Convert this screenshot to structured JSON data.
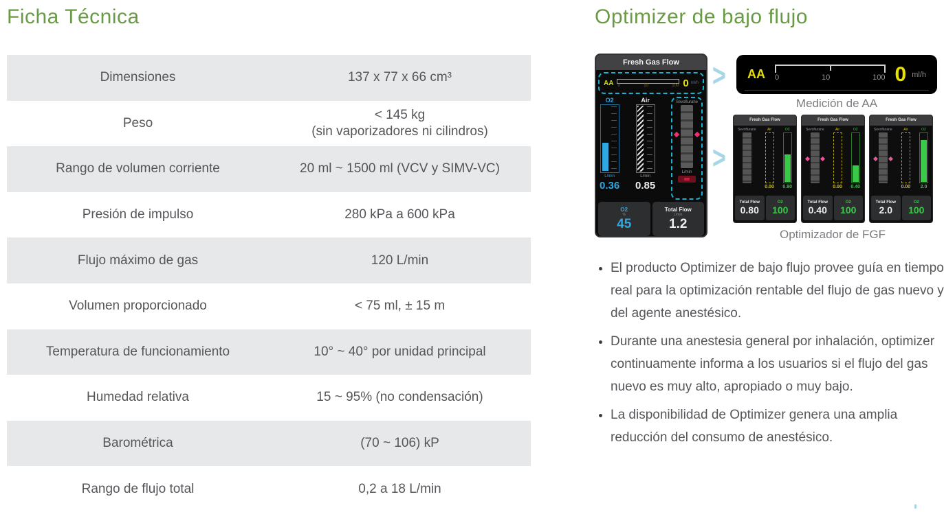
{
  "colors": {
    "accent_green": "#6a9b44",
    "body_text": "#55565a",
    "table_row_shade": "#e7e8ea",
    "caption_grey": "#7b7c7f",
    "highlight_cyan_dash": "#17b3d1",
    "chevron_blue": "#a6d7e8",
    "screen_yellow": "#e8e100",
    "screen_blue": "#2fa8e1",
    "screen_green": "#39c847",
    "screen_red": "#e8336d"
  },
  "left": {
    "title": "Ficha Técnica",
    "table": {
      "rows": [
        {
          "label": "Dimensiones",
          "value": "137 x 77 x 66 cm³"
        },
        {
          "label": "Peso",
          "value": "< 145 kg\n(sin vaporizadores ni cilindros)"
        },
        {
          "label": "Rango de volumen corriente",
          "value": "20 ml ~ 1500 ml (VCV y SIMV-VC)"
        },
        {
          "label": "Presión de impulso",
          "value": "280 kPa a 600 kPa"
        },
        {
          "label": "Flujo máximo de gas",
          "value": "120 L/min"
        },
        {
          "label": "Volumen proporcionado",
          "value": "< 75 ml, ± 15 m"
        },
        {
          "label": "Temperatura de funcionamiento",
          "value": "10° ~ 40° por unidad principal"
        },
        {
          "label": "Humedad relativa",
          "value": "15 ~ 95% (no condensación)"
        },
        {
          "label": "Barométrica",
          "value": "(70 ~ 106) kP"
        },
        {
          "label": "Rango de flujo total",
          "value": "0,2 a 18 L/min"
        }
      ]
    }
  },
  "right": {
    "title": "Optimizer de bajo flujo",
    "device_screen": {
      "title": "Fresh Gas Flow",
      "aa": {
        "label": "AA",
        "value": "0",
        "unit": "ml/h",
        "ticks": [
          "0",
          "10",
          "100"
        ]
      },
      "o2_gauge": {
        "label": "O2",
        "unit": "L/min",
        "value": "0.36",
        "fill_pct": 42
      },
      "air_gauge": {
        "label": "Air",
        "unit": "L/min",
        "value": "0.85"
      },
      "agent_gauge": {
        "label": "Sevoflurane",
        "unit": "L/min"
      },
      "bottom": {
        "o2_label": "O2",
        "o2_unit": "%",
        "o2_value": "45",
        "total_flow_label": "Total Flow",
        "total_flow_unit": "L/min",
        "total_flow_value": "1.2"
      }
    },
    "aa_panel": {
      "label": "AA",
      "value": "0",
      "unit": "ml/h",
      "ticks": [
        "0",
        "10",
        "100"
      ],
      "caption": "Medición de AA"
    },
    "fgf_panels": {
      "caption": "Optimizador de FGF",
      "screens": [
        {
          "title": "Fresh Gas Flow",
          "agent_label": "Sevoflurane",
          "air_label": "Air",
          "air_value": "0.00",
          "o2_label": "O2",
          "o2_value": "0.80",
          "o2_bar_pct": 55,
          "left_marker": false,
          "total_flow_label": "Total Flow",
          "total_flow_value": "0.80",
          "o2_pct_label": "O2",
          "o2_pct_value": "100"
        },
        {
          "title": "Fresh Gas Flow",
          "agent_label": "Sevoflurane",
          "air_label": "Air",
          "air_value": "0.00",
          "o2_label": "O2",
          "o2_value": "0.40",
          "o2_bar_pct": 33,
          "left_marker": true,
          "total_flow_label": "Total Flow",
          "total_flow_value": "0.40",
          "o2_pct_label": "O2",
          "o2_pct_value": "100"
        },
        {
          "title": "Fresh Gas Flow",
          "agent_label": "Sevoflurane",
          "air_label": "Air",
          "air_value": "0.00",
          "o2_label": "O2",
          "o2_value": "2.0",
          "o2_bar_pct": 85,
          "left_marker": true,
          "total_flow_label": "Total Flow",
          "total_flow_value": "2.0",
          "o2_pct_label": "O2",
          "o2_pct_value": "100"
        }
      ]
    },
    "bullets": [
      "El producto Optimizer de bajo flujo provee guía en tiempo real para la optimización rentable del flujo de gas nuevo y del agente anestésico.",
      "Durante una anestesia general por inhalación, optimizer continuamente informa a los usuarios si el flujo del gas nuevo es muy alto, apropiado o muy bajo.",
      "La disponibilidad de Optimizer genera una amplia reducción del consumo de anestésico."
    ]
  }
}
